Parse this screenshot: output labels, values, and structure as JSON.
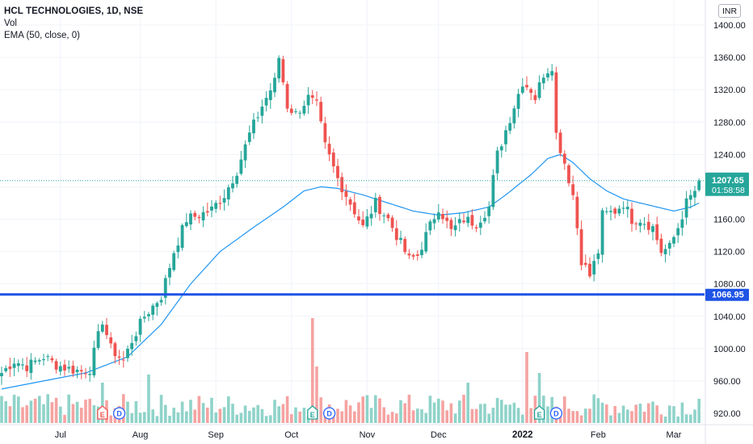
{
  "header": {
    "title": "HCL TECHNOLOGIES, 1D, NSE",
    "vol_label": "Vol",
    "ema_label": "EMA (50, close, 0)",
    "currency": "INR"
  },
  "colors": {
    "up": "#26a69a",
    "down": "#ef5350",
    "vol_up": "#8fd3c9",
    "vol_down": "#f5a3a1",
    "ema": "#2196f3",
    "support": "#1e53e5",
    "price_tag": "#26a69a"
  },
  "price_tag": {
    "value": "1207.65",
    "countdown": "01:58:58"
  },
  "support_tag": {
    "value": "1066.95"
  },
  "markers": [
    {
      "kind": "earnings",
      "letter": "E",
      "x_index": 24
    },
    {
      "kind": "dividend",
      "letter": "D",
      "x_index": 28
    },
    {
      "kind": "earnings",
      "letter": "E",
      "x_index": 74
    },
    {
      "kind": "dividend",
      "letter": "D",
      "x_index": 78
    },
    {
      "kind": "earnings",
      "letter": "E",
      "x_index": 128
    },
    {
      "kind": "dividend",
      "letter": "D",
      "x_index": 132
    }
  ],
  "chart_data": {
    "type": "candlestick",
    "title": "HCL TECHNOLOGIES, 1D, NSE",
    "ylim": [
      905,
      1410
    ],
    "y_ticks": [
      "1400.00",
      "1360.00",
      "1320.00",
      "1280.00",
      "1240.00",
      "1200.00",
      "1160.00",
      "1120.00",
      "1080.00",
      "1040.00",
      "1000.00",
      "960.00",
      "920.00"
    ],
    "y_tick_values": [
      1400,
      1360,
      1320,
      1280,
      1240,
      1200,
      1160,
      1120,
      1080,
      1040,
      1000,
      960,
      920
    ],
    "x_ticks": [
      {
        "label": "Jul",
        "index": 14,
        "bold": false
      },
      {
        "label": "Aug",
        "index": 33,
        "bold": false
      },
      {
        "label": "Sep",
        "index": 51,
        "bold": false
      },
      {
        "label": "Oct",
        "index": 69,
        "bold": false
      },
      {
        "label": "Nov",
        "index": 87,
        "bold": false
      },
      {
        "label": "Dec",
        "index": 104,
        "bold": false
      },
      {
        "label": "2022",
        "index": 124,
        "bold": true
      },
      {
        "label": "Feb",
        "index": 142,
        "bold": false
      },
      {
        "label": "Mar",
        "index": 160,
        "bold": false
      }
    ],
    "ema_label": "EMA (50, close, 0)",
    "last_price": 1207.65,
    "support_level": 1066.95,
    "close_anchors": [
      [
        0,
        970
      ],
      [
        3,
        985
      ],
      [
        6,
        978
      ],
      [
        10,
        990
      ],
      [
        13,
        980
      ],
      [
        16,
        975
      ],
      [
        19,
        972
      ],
      [
        21,
        975
      ],
      [
        24,
        1035
      ],
      [
        26,
        1000
      ],
      [
        29,
        985
      ],
      [
        31,
        1010
      ],
      [
        34,
        1040
      ],
      [
        38,
        1065
      ],
      [
        41,
        1120
      ],
      [
        44,
        1160
      ],
      [
        47,
        1165
      ],
      [
        50,
        1172
      ],
      [
        53,
        1190
      ],
      [
        56,
        1220
      ],
      [
        59,
        1265
      ],
      [
        62,
        1300
      ],
      [
        65,
        1330
      ],
      [
        66,
        1360
      ],
      [
        68,
        1300
      ],
      [
        70,
        1290
      ],
      [
        73,
        1310
      ],
      [
        75,
        1300
      ],
      [
        77,
        1250
      ],
      [
        80,
        1210
      ],
      [
        82,
        1190
      ],
      [
        84,
        1170
      ],
      [
        86,
        1150
      ],
      [
        89,
        1180
      ],
      [
        92,
        1160
      ],
      [
        95,
        1130
      ],
      [
        97,
        1110
      ],
      [
        99,
        1115
      ],
      [
        101,
        1140
      ],
      [
        104,
        1175
      ],
      [
        107,
        1145
      ],
      [
        110,
        1160
      ],
      [
        113,
        1155
      ],
      [
        116,
        1175
      ],
      [
        117,
        1210
      ],
      [
        118,
        1240
      ],
      [
        120,
        1270
      ],
      [
        122,
        1300
      ],
      [
        124,
        1330
      ],
      [
        126,
        1320
      ],
      [
        127,
        1310
      ],
      [
        129,
        1340
      ],
      [
        131,
        1350
      ],
      [
        132,
        1265
      ],
      [
        134,
        1230
      ],
      [
        136,
        1190
      ],
      [
        138,
        1110
      ],
      [
        140,
        1090
      ],
      [
        142,
        1120
      ],
      [
        143,
        1165
      ],
      [
        146,
        1170
      ],
      [
        148,
        1180
      ],
      [
        150,
        1160
      ],
      [
        152,
        1160
      ],
      [
        155,
        1150
      ],
      [
        157,
        1120
      ],
      [
        159,
        1125
      ],
      [
        161,
        1150
      ],
      [
        163,
        1180
      ],
      [
        165,
        1195
      ],
      [
        166,
        1207.65
      ]
    ],
    "ema_anchors": [
      [
        0,
        950
      ],
      [
        10,
        960
      ],
      [
        20,
        970
      ],
      [
        30,
        990
      ],
      [
        38,
        1030
      ],
      [
        45,
        1080
      ],
      [
        52,
        1120
      ],
      [
        60,
        1150
      ],
      [
        67,
        1175
      ],
      [
        72,
        1195
      ],
      [
        76,
        1200
      ],
      [
        80,
        1198
      ],
      [
        86,
        1190
      ],
      [
        92,
        1180
      ],
      [
        98,
        1170
      ],
      [
        104,
        1165
      ],
      [
        110,
        1168
      ],
      [
        116,
        1175
      ],
      [
        120,
        1190
      ],
      [
        126,
        1215
      ],
      [
        130,
        1235
      ],
      [
        133,
        1240
      ],
      [
        136,
        1230
      ],
      [
        140,
        1210
      ],
      [
        144,
        1195
      ],
      [
        148,
        1185
      ],
      [
        152,
        1180
      ],
      [
        156,
        1175
      ],
      [
        160,
        1170
      ],
      [
        164,
        1175
      ],
      [
        166,
        1180
      ]
    ],
    "candle_count": 167,
    "volume_scale": "relative"
  }
}
